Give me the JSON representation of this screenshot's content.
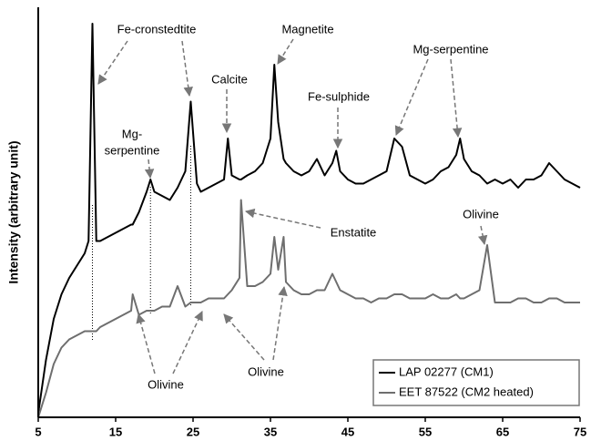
{
  "chart_data": {
    "type": "line",
    "y_label": "Intensity (arbitrary unit)",
    "x": [
      5,
      6,
      7,
      8,
      9,
      10,
      11,
      11.5,
      12,
      12.5,
      13,
      14,
      15,
      16,
      17,
      17.2,
      18,
      19,
      19.5,
      20,
      21,
      22,
      23,
      24,
      24.7,
      25.5,
      26,
      27,
      28,
      29,
      29.5,
      30,
      31,
      31.2,
      32,
      33,
      34,
      35,
      35.5,
      36,
      36.7,
      37,
      38,
      39,
      40,
      41,
      42,
      43,
      43.5,
      44,
      45,
      46,
      47,
      48,
      49,
      50,
      51,
      52,
      53,
      54,
      55,
      56,
      57,
      58,
      59,
      59.5,
      60,
      61,
      62,
      63,
      64,
      65,
      66,
      67,
      68,
      69,
      70,
      71,
      72,
      73,
      74,
      75
    ],
    "series": [
      {
        "name": "LAP 02277 (CM1)",
        "color": "#000000",
        "values": [
          1,
          14,
          24,
          30,
          34,
          37,
          40,
          43,
          96,
          43,
          43,
          44,
          45,
          46,
          47,
          47,
          50,
          55,
          58,
          55,
          54,
          53,
          56,
          60,
          77,
          57,
          55,
          56,
          57,
          58,
          68,
          59,
          58,
          58,
          59,
          60,
          62,
          68,
          86,
          72,
          63,
          62,
          60,
          59,
          60,
          63,
          59,
          62,
          65,
          60,
          58,
          57,
          57,
          58,
          59,
          60,
          68,
          66,
          59,
          58,
          57,
          58,
          60,
          61,
          64,
          68,
          63,
          60,
          59,
          57,
          58,
          57,
          58,
          56,
          58,
          58,
          59,
          62,
          60,
          58,
          57,
          56
        ]
      },
      {
        "name": "EET 87522 (CM2 heated)",
        "color": "#6e6e6e",
        "values": [
          0,
          6,
          13,
          17,
          19,
          20,
          21,
          21,
          21,
          21,
          22,
          23,
          24,
          25,
          26,
          30,
          25,
          26,
          26,
          26,
          27,
          27,
          32,
          27,
          28,
          28,
          28,
          29,
          29,
          29,
          30,
          31,
          34,
          53,
          32,
          32,
          33,
          35,
          44,
          36,
          44,
          33,
          31,
          30,
          30,
          31,
          31,
          35,
          33,
          31,
          30,
          29,
          29,
          28,
          29,
          29,
          30,
          30,
          29,
          29,
          29,
          30,
          29,
          29,
          30,
          29,
          29,
          30,
          31,
          42,
          28,
          28,
          28,
          29,
          29,
          28,
          28,
          29,
          29,
          28,
          28,
          28
        ]
      }
    ],
    "xlim": [
      5,
      75
    ],
    "xticks": [
      5,
      15,
      25,
      35,
      45,
      55,
      65,
      75
    ],
    "ylim": [
      0,
      100
    ],
    "annotations": [
      "Fe-cronstedtite",
      "Mg-",
      "serpentine",
      "Calcite",
      "Magnetite",
      "Fe-sulphide",
      "Mg-serpentine",
      "Enstatite",
      "Olivine",
      "Olivine",
      "Olivine"
    ],
    "legend": "lower right"
  }
}
